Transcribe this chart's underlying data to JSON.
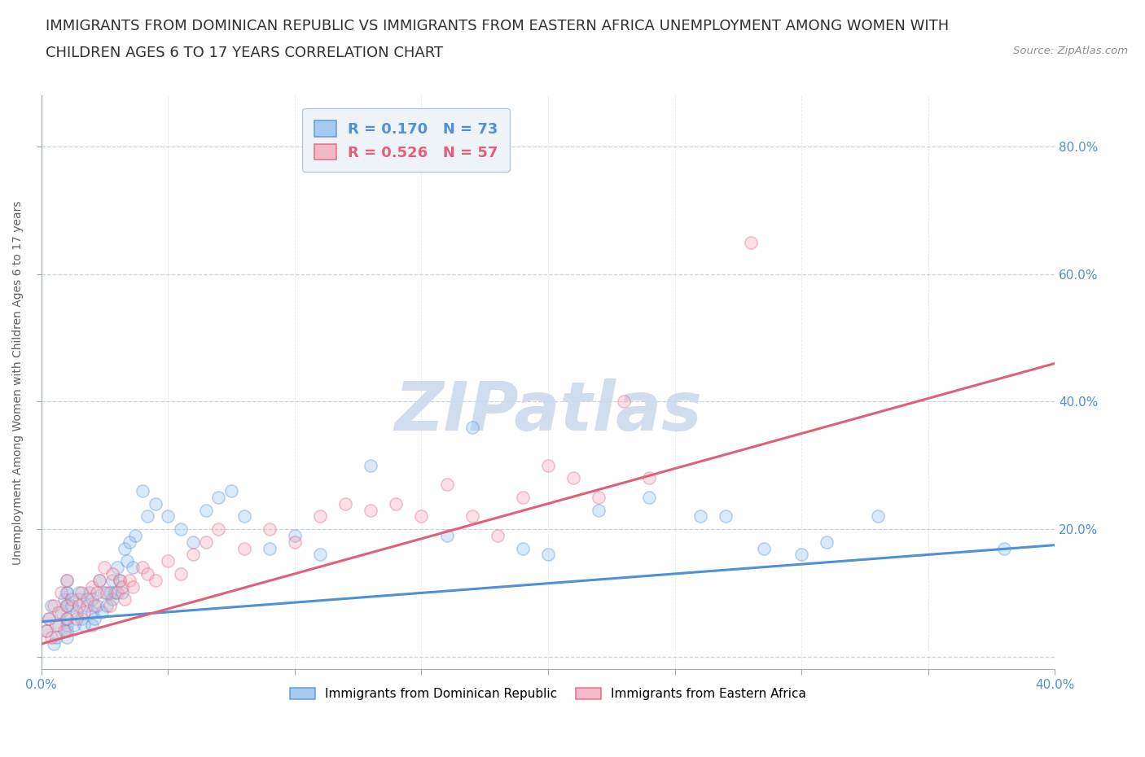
{
  "title_line1": "IMMIGRANTS FROM DOMINICAN REPUBLIC VS IMMIGRANTS FROM EASTERN AFRICA UNEMPLOYMENT AMONG WOMEN WITH",
  "title_line2": "CHILDREN AGES 6 TO 17 YEARS CORRELATION CHART",
  "source": "Source: ZipAtlas.com",
  "ylabel": "Unemployment Among Women with Children Ages 6 to 17 years",
  "xlim": [
    0.0,
    0.4
  ],
  "ylim": [
    -0.02,
    0.88
  ],
  "xticks": [
    0.0,
    0.05,
    0.1,
    0.15,
    0.2,
    0.25,
    0.3,
    0.35,
    0.4
  ],
  "xtick_labels": [
    "0.0%",
    "",
    "",
    "",
    "",
    "",
    "",
    "",
    "40.0%"
  ],
  "ytick_positions": [
    0.0,
    0.2,
    0.4,
    0.6,
    0.8
  ],
  "ytick_labels_right": [
    "",
    "20.0%",
    "40.0%",
    "60.0%",
    "80.0%"
  ],
  "blue_R": 0.17,
  "blue_N": 73,
  "pink_R": 0.526,
  "pink_N": 57,
  "blue_color": "#92C0ED",
  "pink_color": "#F4AABB",
  "blue_line_color": "#5090D8",
  "pink_line_color": "#E0607A",
  "watermark": "ZIPatlas",
  "watermark_color": "#C8D8EC",
  "background_color": "#FFFFFF",
  "grid_color": "#C8D4DC",
  "blue_scatter_x": [
    0.002,
    0.003,
    0.004,
    0.005,
    0.006,
    0.007,
    0.008,
    0.009,
    0.01,
    0.01,
    0.01,
    0.01,
    0.01,
    0.01,
    0.01,
    0.01,
    0.012,
    0.013,
    0.014,
    0.015,
    0.015,
    0.016,
    0.017,
    0.018,
    0.019,
    0.02,
    0.02,
    0.02,
    0.021,
    0.022,
    0.023,
    0.024,
    0.025,
    0.026,
    0.027,
    0.028,
    0.028,
    0.029,
    0.03,
    0.031,
    0.032,
    0.033,
    0.034,
    0.035,
    0.036,
    0.037,
    0.04,
    0.042,
    0.045,
    0.05,
    0.055,
    0.06,
    0.065,
    0.07,
    0.075,
    0.08,
    0.09,
    0.1,
    0.11,
    0.13,
    0.16,
    0.17,
    0.19,
    0.2,
    0.22,
    0.24,
    0.26,
    0.27,
    0.285,
    0.3,
    0.31,
    0.33,
    0.38
  ],
  "blue_scatter_y": [
    0.04,
    0.06,
    0.08,
    0.02,
    0.03,
    0.05,
    0.07,
    0.09,
    0.1,
    0.12,
    0.05,
    0.03,
    0.08,
    0.06,
    0.1,
    0.04,
    0.08,
    0.05,
    0.07,
    0.1,
    0.09,
    0.06,
    0.05,
    0.08,
    0.1,
    0.07,
    0.05,
    0.09,
    0.06,
    0.08,
    0.12,
    0.07,
    0.1,
    0.08,
    0.1,
    0.12,
    0.09,
    0.1,
    0.14,
    0.12,
    0.1,
    0.17,
    0.15,
    0.18,
    0.14,
    0.19,
    0.26,
    0.22,
    0.24,
    0.22,
    0.2,
    0.18,
    0.23,
    0.25,
    0.26,
    0.22,
    0.17,
    0.19,
    0.16,
    0.3,
    0.19,
    0.36,
    0.17,
    0.16,
    0.23,
    0.25,
    0.22,
    0.22,
    0.17,
    0.16,
    0.18,
    0.22,
    0.17
  ],
  "pink_scatter_x": [
    0.002,
    0.003,
    0.004,
    0.005,
    0.006,
    0.007,
    0.008,
    0.009,
    0.01,
    0.01,
    0.01,
    0.012,
    0.014,
    0.015,
    0.016,
    0.017,
    0.018,
    0.02,
    0.021,
    0.022,
    0.023,
    0.025,
    0.026,
    0.027,
    0.028,
    0.03,
    0.031,
    0.032,
    0.033,
    0.035,
    0.036,
    0.04,
    0.042,
    0.045,
    0.05,
    0.055,
    0.06,
    0.065,
    0.07,
    0.08,
    0.09,
    0.1,
    0.11,
    0.12,
    0.13,
    0.14,
    0.15,
    0.16,
    0.17,
    0.18,
    0.19,
    0.2,
    0.21,
    0.22,
    0.23,
    0.24,
    0.28
  ],
  "pink_scatter_y": [
    0.04,
    0.06,
    0.03,
    0.08,
    0.05,
    0.07,
    0.1,
    0.04,
    0.06,
    0.08,
    0.12,
    0.09,
    0.06,
    0.08,
    0.1,
    0.07,
    0.09,
    0.11,
    0.08,
    0.1,
    0.12,
    0.14,
    0.1,
    0.08,
    0.13,
    0.1,
    0.12,
    0.11,
    0.09,
    0.12,
    0.11,
    0.14,
    0.13,
    0.12,
    0.15,
    0.13,
    0.16,
    0.18,
    0.2,
    0.17,
    0.2,
    0.18,
    0.22,
    0.24,
    0.23,
    0.24,
    0.22,
    0.27,
    0.22,
    0.19,
    0.25,
    0.3,
    0.28,
    0.25,
    0.4,
    0.28,
    0.65
  ],
  "blue_trend_x": [
    0.0,
    0.4
  ],
  "blue_trend_y": [
    0.055,
    0.175
  ],
  "pink_trend_x": [
    0.0,
    0.4
  ],
  "pink_trend_y": [
    0.02,
    0.46
  ],
  "legend_box_color": "#EEF3F8",
  "legend_border_color": "#B8C8D8",
  "title_fontsize": 13,
  "axis_label_fontsize": 10,
  "tick_fontsize": 11,
  "legend_fontsize": 13,
  "scatter_size": 120,
  "scatter_alpha": 0.35,
  "scatter_linewidth": 1.2,
  "tick_color": "#5090D0"
}
